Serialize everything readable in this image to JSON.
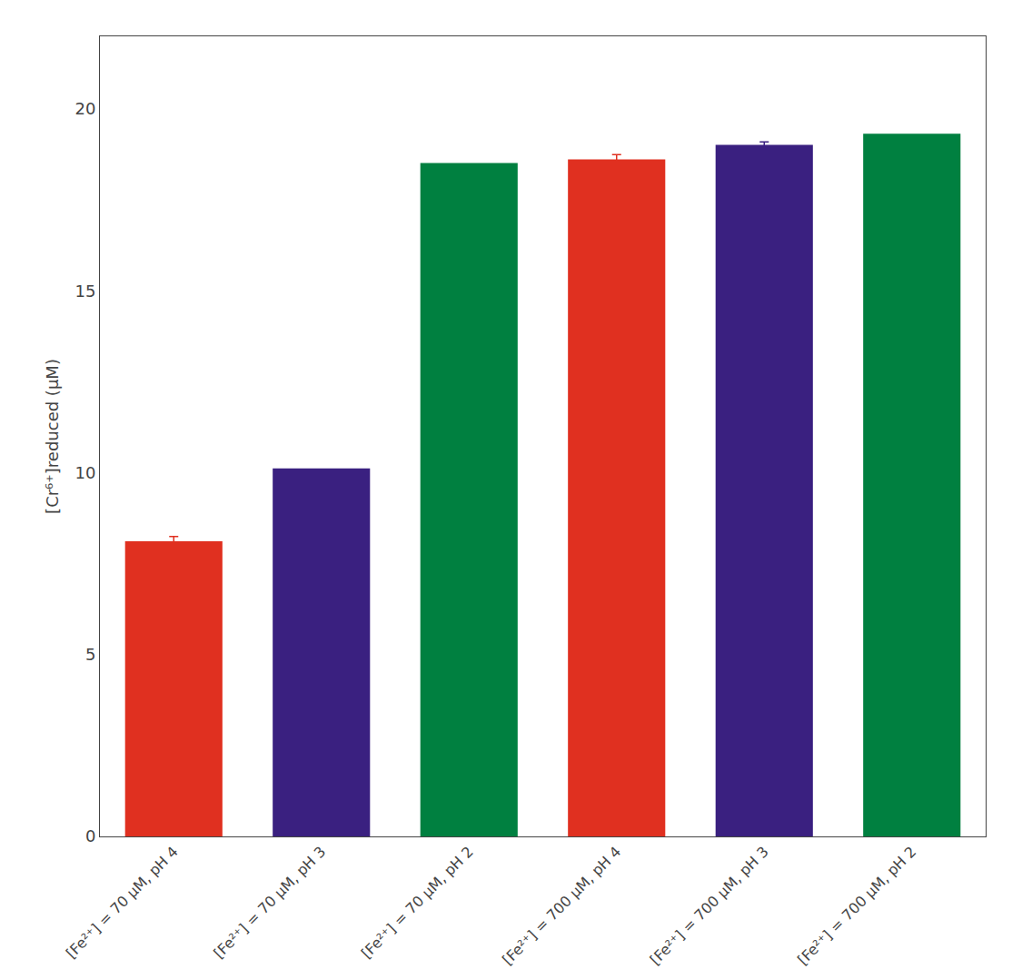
{
  "chart_data": {
    "type": "bar",
    "ylabel": "[Cr⁶⁺]reduced (μM)",
    "categories": [
      "[Fe²⁺] = 70 μM, pH 4",
      "[Fe²⁺] = 70 μM, pH 3",
      "[Fe²⁺] = 70 μM, pH 2",
      "[Fe²⁺] = 700 μM, pH 4",
      "[Fe²⁺] = 700 μM, pH 3",
      "[Fe²⁺] = 700 μM, pH 2"
    ],
    "values": [
      8.1,
      10.1,
      18.5,
      18.6,
      19.0,
      19.3
    ],
    "errors": [
      0.15,
      0.0,
      0.0,
      0.15,
      0.1,
      0.0
    ],
    "colors": [
      "#e03020",
      "#3a2080",
      "#008040",
      "#e03020",
      "#3a2080",
      "#008040"
    ],
    "ylim": [
      0,
      22
    ],
    "yticks": [
      0,
      5,
      10,
      15,
      20
    ],
    "grid": false
  }
}
